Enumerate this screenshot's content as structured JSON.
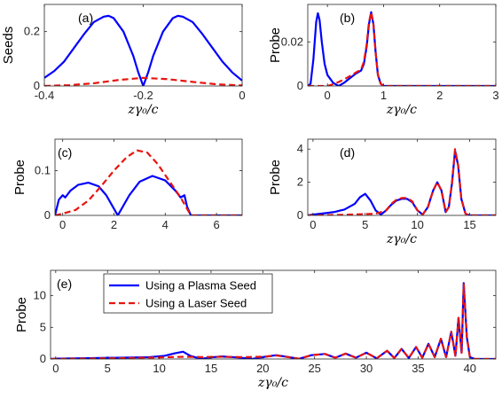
{
  "colors": {
    "plasma": "#0000ff",
    "laser": "#e8140f",
    "axis": "#262626"
  },
  "xlabel": "zγ₀/c",
  "chart_data": [
    {
      "id": "a",
      "type": "line",
      "panel_label": "(a)",
      "ylabel": "Seeds",
      "xlabel": "zγ₀/c",
      "xlim": [
        -0.4,
        0
      ],
      "ylim": [
        0,
        0.3
      ],
      "xticks": [
        -0.4,
        -0.2,
        0
      ],
      "xtick_labels": [
        "-0.4",
        "-0.2",
        "0"
      ],
      "yticks": [
        0,
        0.2
      ],
      "ytick_labels": [
        "0",
        "0.2"
      ],
      "series": [
        {
          "key": "plasma",
          "style": "solid",
          "x": [
            -0.4,
            -0.38,
            -0.36,
            -0.34,
            -0.32,
            -0.3,
            -0.28,
            -0.27,
            -0.26,
            -0.24,
            -0.22,
            -0.21,
            -0.2,
            -0.19,
            -0.18,
            -0.16,
            -0.14,
            -0.13,
            -0.12,
            -0.1,
            -0.08,
            -0.06,
            -0.04,
            -0.02,
            0
          ],
          "y": [
            0.03,
            0.055,
            0.09,
            0.14,
            0.19,
            0.235,
            0.255,
            0.258,
            0.25,
            0.2,
            0.11,
            0.05,
            0.0,
            0.05,
            0.11,
            0.2,
            0.25,
            0.258,
            0.255,
            0.235,
            0.19,
            0.14,
            0.09,
            0.05,
            0.02
          ]
        },
        {
          "key": "laser",
          "style": "dashed",
          "x": [
            -0.4,
            -0.35,
            -0.3,
            -0.25,
            -0.2,
            -0.15,
            -0.1,
            -0.05,
            0
          ],
          "y": [
            0.0,
            0.003,
            0.01,
            0.022,
            0.03,
            0.025,
            0.015,
            0.006,
            0.002
          ]
        }
      ]
    },
    {
      "id": "b",
      "type": "line",
      "panel_label": "(b)",
      "ylabel": "Probe",
      "xlabel": "zγ₀/c",
      "xlim": [
        -0.35,
        3
      ],
      "ylim": [
        0,
        0.037
      ],
      "xticks": [
        0,
        1,
        2,
        3
      ],
      "xtick_labels": [
        "0",
        "1",
        "2",
        "3"
      ],
      "yticks": [
        0,
        0.02
      ],
      "ytick_labels": [
        "0",
        "0.02"
      ],
      "series": [
        {
          "key": "plasma",
          "style": "solid",
          "x": [
            -0.35,
            -0.3,
            -0.25,
            -0.2,
            -0.17,
            -0.14,
            -0.1,
            -0.05,
            0,
            0.1,
            0.2,
            0.3,
            0.4,
            0.5,
            0.6,
            0.65,
            0.7,
            0.74,
            0.78,
            0.82,
            0.86,
            0.9,
            0.95,
            1.0,
            1.1,
            1.5,
            3
          ],
          "y": [
            0.0,
            0.001,
            0.012,
            0.029,
            0.033,
            0.03,
            0.02,
            0.01,
            0.005,
            0.0015,
            0.0,
            0.0015,
            0.0035,
            0.0055,
            0.007,
            0.01,
            0.018,
            0.028,
            0.0335,
            0.028,
            0.015,
            0.005,
            0.001,
            0.0,
            0.0,
            0.0,
            0.0
          ]
        },
        {
          "key": "laser",
          "style": "dashed",
          "x": [
            -0.35,
            0,
            0.1,
            0.2,
            0.3,
            0.4,
            0.5,
            0.6,
            0.65,
            0.7,
            0.74,
            0.78,
            0.82,
            0.86,
            0.9,
            0.95,
            1.0,
            1.1,
            1.5,
            3
          ],
          "y": [
            0.0,
            0.0,
            0.0008,
            0.0018,
            0.003,
            0.0045,
            0.006,
            0.0075,
            0.011,
            0.019,
            0.029,
            0.0335,
            0.028,
            0.015,
            0.005,
            0.001,
            0.0,
            0.0,
            0.0,
            0.0
          ]
        }
      ]
    },
    {
      "id": "c",
      "type": "line",
      "panel_label": "(c)",
      "ylabel": "Probe",
      "xlabel": "",
      "xlim": [
        -0.3,
        7
      ],
      "ylim": [
        0,
        0.17
      ],
      "xticks": [
        0,
        2,
        4,
        6
      ],
      "xtick_labels": [
        "0",
        "2",
        "4",
        "6"
      ],
      "yticks": [
        0,
        0.1
      ],
      "ytick_labels": [
        "0",
        "0.1"
      ],
      "series": [
        {
          "key": "plasma",
          "style": "solid",
          "x": [
            -0.3,
            -0.15,
            0,
            0.1,
            0.3,
            0.6,
            1.0,
            1.4,
            1.7,
            2.0,
            2.15,
            2.3,
            2.6,
            3.0,
            3.5,
            4.0,
            4.4,
            4.6,
            4.75,
            4.85,
            5.0,
            5.3,
            7
          ],
          "y": [
            0.0,
            0.035,
            0.045,
            0.04,
            0.055,
            0.068,
            0.073,
            0.065,
            0.045,
            0.015,
            0.0,
            0.015,
            0.045,
            0.075,
            0.088,
            0.078,
            0.055,
            0.04,
            0.045,
            0.02,
            0.0,
            0.0,
            0.0
          ]
        },
        {
          "key": "laser",
          "style": "dashed",
          "x": [
            -0.3,
            0,
            0.5,
            1.0,
            1.5,
            2.0,
            2.5,
            2.9,
            3.3,
            3.7,
            4.0,
            4.3,
            4.6,
            4.8,
            5.0,
            5.3,
            7
          ],
          "y": [
            0.0,
            0.004,
            0.012,
            0.033,
            0.065,
            0.1,
            0.13,
            0.145,
            0.14,
            0.115,
            0.09,
            0.065,
            0.04,
            0.02,
            0.0,
            0.0,
            0.0
          ]
        }
      ]
    },
    {
      "id": "d",
      "type": "line",
      "panel_label": "(d)",
      "ylabel": "Probe",
      "xlabel": "zγ₀/c",
      "xlim": [
        -0.5,
        17.5
      ],
      "ylim": [
        0,
        4.6
      ],
      "xticks": [
        0,
        5,
        10,
        15
      ],
      "xtick_labels": [
        "0",
        "5",
        "10",
        "15"
      ],
      "yticks": [
        0,
        2,
        4
      ],
      "ytick_labels": [
        "0",
        "2",
        "4"
      ],
      "series": [
        {
          "key": "plasma",
          "style": "solid",
          "x": [
            -0.5,
            0,
            1,
            2,
            3,
            4,
            4.5,
            5,
            5.5,
            6,
            6.5,
            7,
            7.5,
            8,
            8.5,
            9,
            9.5,
            10,
            10.5,
            11,
            11.5,
            11.9,
            12.3,
            12.7,
            13,
            13.3,
            13.6,
            13.9,
            14.2,
            14.6,
            15,
            17.5
          ],
          "y": [
            0.0,
            0.05,
            0.12,
            0.2,
            0.35,
            0.7,
            1.1,
            1.3,
            0.9,
            0.3,
            0.05,
            0.3,
            0.65,
            0.9,
            1.0,
            1.0,
            0.8,
            0.3,
            0.05,
            0.5,
            1.5,
            2.0,
            1.5,
            0.2,
            0.5,
            1.9,
            3.9,
            3.0,
            1.0,
            0.1,
            0.0,
            0.0
          ]
        },
        {
          "key": "laser",
          "style": "dashed",
          "x": [
            -0.5,
            0,
            2,
            4,
            5,
            6,
            7,
            7.5,
            8,
            8.5,
            9,
            9.5,
            10,
            10.5,
            11,
            11.5,
            11.9,
            12.3,
            12.7,
            13,
            13.3,
            13.6,
            13.9,
            14.2,
            14.6,
            15,
            17.5
          ],
          "y": [
            0.0,
            0.0,
            0.02,
            0.06,
            0.08,
            0.1,
            0.3,
            0.7,
            0.95,
            1.05,
            1.05,
            0.85,
            0.3,
            0.05,
            0.5,
            1.5,
            2.0,
            1.5,
            0.2,
            0.5,
            1.9,
            4.0,
            3.0,
            1.0,
            0.1,
            0.0,
            0.0
          ]
        }
      ]
    },
    {
      "id": "e",
      "type": "line",
      "panel_label": "(e)",
      "ylabel": "Probe",
      "xlabel": "zγ₀/c",
      "xlim": [
        -0.5,
        42.5
      ],
      "ylim": [
        0,
        14
      ],
      "xticks": [
        0,
        5,
        10,
        15,
        20,
        25,
        30,
        35,
        40
      ],
      "xtick_labels": [
        "0",
        "5",
        "10",
        "15",
        "20",
        "25",
        "30",
        "35",
        "40"
      ],
      "yticks": [
        0,
        5,
        10
      ],
      "ytick_labels": [
        "0",
        "5",
        "10"
      ],
      "legend": {
        "position": "upper-left",
        "entries": [
          "Using a Plasma Seed",
          "Using a Laser Seed"
        ]
      },
      "series": [
        {
          "key": "plasma",
          "style": "solid",
          "name": "Using a Plasma Seed",
          "x": [
            -0.5,
            0,
            3,
            6,
            9,
            10.5,
            11.5,
            12.3,
            13.0,
            14.0,
            15,
            16,
            17.5,
            19,
            20,
            21.3,
            22.5,
            23.5,
            24.7,
            26,
            27,
            28,
            29,
            30,
            31,
            32,
            32.7,
            33.4,
            34.1,
            34.8,
            35.4,
            36.0,
            36.6,
            37.2,
            37.7,
            38.2,
            38.6,
            38.9,
            39.2,
            39.4,
            39.7,
            40.0,
            40.5,
            42.5
          ],
          "y": [
            0.0,
            0.05,
            0.12,
            0.2,
            0.28,
            0.5,
            0.9,
            1.15,
            0.5,
            0.02,
            0.25,
            0.4,
            0.25,
            0.02,
            0.3,
            0.6,
            0.3,
            0.02,
            0.6,
            0.8,
            0.2,
            0.85,
            0.2,
            1.0,
            0.1,
            1.3,
            0.15,
            1.6,
            0.15,
            1.9,
            0.2,
            2.4,
            0.3,
            3.2,
            0.3,
            4.3,
            0.5,
            6.5,
            1.0,
            12.0,
            3.5,
            0.3,
            0.0,
            0.0
          ]
        },
        {
          "key": "laser",
          "style": "dashed",
          "name": "Using a Laser Seed",
          "x": [
            -0.5,
            0,
            3,
            6,
            9,
            11,
            12.5,
            14,
            16,
            18,
            20,
            21.3,
            22.5,
            23.5,
            24.7,
            26,
            27,
            28,
            29,
            30,
            31,
            32,
            32.7,
            33.4,
            34.1,
            34.8,
            35.4,
            36.0,
            36.6,
            37.2,
            37.7,
            38.2,
            38.6,
            38.9,
            39.2,
            39.4,
            39.7,
            40.0,
            40.5,
            42.5
          ],
          "y": [
            0.0,
            0.02,
            0.06,
            0.12,
            0.2,
            0.3,
            0.35,
            0.3,
            0.35,
            0.3,
            0.35,
            0.55,
            0.3,
            0.05,
            0.6,
            0.8,
            0.2,
            0.85,
            0.2,
            1.0,
            0.1,
            1.3,
            0.15,
            1.6,
            0.15,
            1.9,
            0.2,
            2.4,
            0.3,
            3.2,
            0.3,
            4.3,
            0.5,
            6.5,
            1.0,
            11.8,
            3.5,
            0.3,
            0.0,
            0.0
          ]
        }
      ]
    }
  ]
}
